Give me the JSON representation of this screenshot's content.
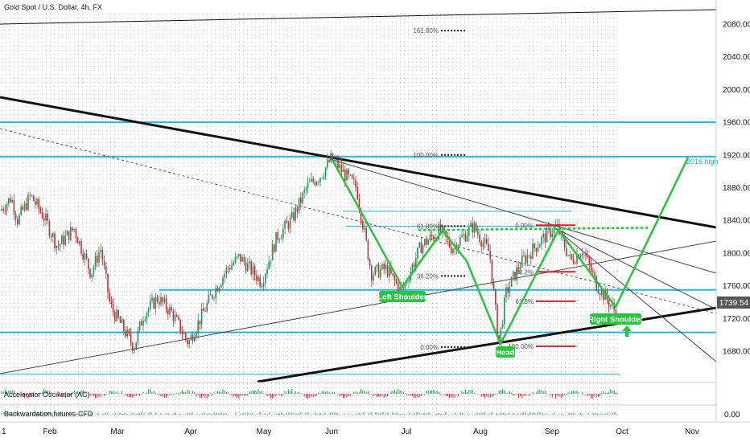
{
  "header": {
    "title": "Gold Spot / U.S. Dollar, 4h, FX"
  },
  "colors": {
    "cyan": "#27b5e0",
    "black": "#111111",
    "green": "#29c43f",
    "red": "#d0202e",
    "candle_up": "#2c8c5a",
    "candle_down": "#c4303a",
    "price_label": "#565656",
    "background": "#ffffff"
  },
  "indicators": {
    "ac_label": "Accelerator Oscillator (AC)",
    "bw_label": "Backwardation,futures-CFD",
    "bw_value": "0.00"
  },
  "current_price": "1739.54",
  "chart_data": {
    "type": "candlestick",
    "series_name": "Gold Spot / U.S. Dollar, 4h, FX",
    "y_axis": {
      "ticks": [
        "2080.00",
        "2040.00",
        "2000.00",
        "1960.00",
        "1920.00",
        "1880.00",
        "1840.00",
        "1800.00",
        "1760.00",
        "1720.00",
        "1680.00"
      ],
      "ylim": [
        1650,
        2105
      ]
    },
    "x_axis": {
      "ticks": [
        "1",
        "Feb",
        "Mar",
        "Apr",
        "May",
        "Jun",
        "Jul",
        "Aug",
        "Sep",
        "Oct",
        "Nov"
      ],
      "xlim": [
        "2021-01-01",
        "2021-11-09"
      ]
    },
    "approx_path": [
      [
        "2021-01-01",
        1852
      ],
      [
        "2021-01-08",
        1868
      ],
      [
        "2021-01-12",
        1840
      ],
      [
        "2021-01-20",
        1870
      ],
      [
        "2021-01-29",
        1842
      ],
      [
        "2021-02-04",
        1808
      ],
      [
        "2021-02-11",
        1830
      ],
      [
        "2021-02-18",
        1775
      ],
      [
        "2021-02-22",
        1806
      ],
      [
        "2021-02-26",
        1735
      ],
      [
        "2021-03-08",
        1685
      ],
      [
        "2021-03-12",
        1725
      ],
      [
        "2021-03-18",
        1745
      ],
      [
        "2021-03-24",
        1727
      ],
      [
        "2021-03-31",
        1690
      ],
      [
        "2021-04-09",
        1745
      ],
      [
        "2021-04-16",
        1781
      ],
      [
        "2021-04-21",
        1795
      ],
      [
        "2021-04-30",
        1765
      ],
      [
        "2021-05-07",
        1820
      ],
      [
        "2021-05-14",
        1842
      ],
      [
        "2021-05-21",
        1882
      ],
      [
        "2021-05-27",
        1895
      ],
      [
        "2021-06-01",
        1916
      ],
      [
        "2021-06-08",
        1890
      ],
      [
        "2021-06-11",
        1880
      ],
      [
        "2021-06-17",
        1775
      ],
      [
        "2021-06-23",
        1781
      ],
      [
        "2021-06-29",
        1752
      ],
      [
        "2021-07-07",
        1808
      ],
      [
        "2021-07-15",
        1828
      ],
      [
        "2021-07-20",
        1806
      ],
      [
        "2021-07-29",
        1833
      ],
      [
        "2021-08-05",
        1800
      ],
      [
        "2021-08-09",
        1688
      ],
      [
        "2021-08-12",
        1750
      ],
      [
        "2021-08-18",
        1786
      ],
      [
        "2021-08-27",
        1815
      ],
      [
        "2021-09-03",
        1833
      ],
      [
        "2021-09-09",
        1790
      ],
      [
        "2021-09-14",
        1805
      ],
      [
        "2021-09-20",
        1762
      ],
      [
        "2021-09-29",
        1725
      ],
      [
        "2021-10-01",
        1739.54
      ]
    ],
    "horizontal_levels": [
      {
        "price": 1960,
        "color": "cyan"
      },
      {
        "price": 1918,
        "color": "cyan",
        "label": "2018 high"
      },
      {
        "price": 1755,
        "color": "cyan"
      },
      {
        "price": 1703,
        "color": "cyan"
      },
      {
        "price": 1833,
        "color": "cyan"
      }
    ],
    "fib_labels_top": [
      {
        "text": "161.80%",
        "price": 2072
      },
      {
        "text": "100.00%",
        "price": 1920
      },
      {
        "text": "61.80%",
        "price": 1833
      },
      {
        "text": "38.20%",
        "price": 1772
      },
      {
        "text": "0.00%",
        "price": 1685
      }
    ],
    "fib_labels_right": [
      {
        "text": "0.00%",
        "price": 1834
      },
      {
        "text": "38.2%",
        "price": 1777
      },
      {
        "text": "61.8%",
        "price": 1741
      },
      {
        "text": "100.00%",
        "price": 1686
      }
    ],
    "pattern": {
      "name": "Head and Shoulders",
      "labels": [
        "Left Shoulder",
        "Head",
        "Right Shoulder"
      ]
    }
  }
}
